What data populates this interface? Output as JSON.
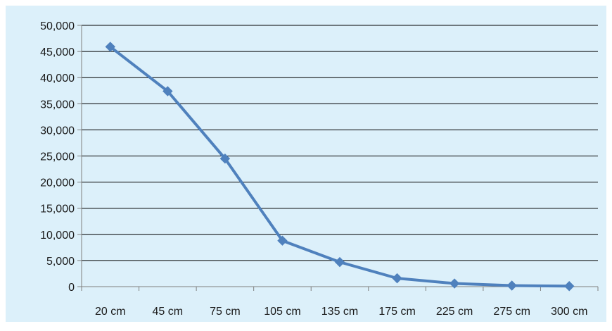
{
  "chart_data": {
    "type": "line",
    "categories": [
      "20 cm",
      "45 cm",
      "75 cm",
      "105 cm",
      "135 cm",
      "175 cm",
      "225 cm",
      "275 cm",
      "300 cm"
    ],
    "series": [
      {
        "values": [
          45900,
          37400,
          24500,
          8800,
          4700,
          1600,
          600,
          200,
          100
        ]
      }
    ],
    "ylim": [
      0,
      50000
    ],
    "y_ticks": [
      0,
      5000,
      10000,
      15000,
      20000,
      25000,
      30000,
      35000,
      40000,
      45000,
      50000
    ],
    "y_tick_labels": [
      "0",
      "5,000",
      "10,000",
      "15,000",
      "20,000",
      "25,000",
      "30,000",
      "35,000",
      "40,000",
      "45,000",
      "50,000"
    ],
    "grid": true,
    "legend": "none",
    "marker": "diamond"
  },
  "colors": {
    "plot_background": "#dcf0fa",
    "line": "#4f81bd",
    "marker": "#4f81bd",
    "gridline": "#000000",
    "axis": "#7f7f7f",
    "text": "#1a1a1a"
  }
}
